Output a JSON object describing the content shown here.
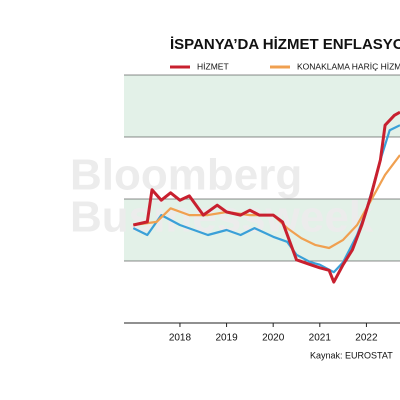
{
  "chart_data": {
    "type": "line",
    "title": "İSPANYA’DA HİZMET ENFLASYONU",
    "watermark": [
      "Bloomberg",
      "Businessweek"
    ],
    "source": "Kaynak: EUROSTAT",
    "xlim": [
      2016.8,
      2022.72
    ],
    "xticks": [
      2018,
      2019,
      2020,
      2021,
      2022
    ],
    "ylim": [
      0,
      4
    ],
    "series": [
      {
        "name": "HİZMET",
        "color": "#c8202f",
        "x": [
          2017.0,
          2017.3,
          2017.4,
          2017.6,
          2017.8,
          2018.0,
          2018.2,
          2018.5,
          2018.8,
          2019.0,
          2019.3,
          2019.5,
          2019.7,
          2020.0,
          2020.2,
          2020.5,
          2020.8,
          2021.0,
          2021.2,
          2021.3,
          2021.5,
          2021.7,
          2021.9,
          2022.1,
          2022.3,
          2022.4,
          2022.6,
          2022.72
        ],
        "values": [
          1.58,
          1.63,
          2.15,
          1.98,
          2.1,
          1.98,
          2.05,
          1.74,
          1.9,
          1.79,
          1.74,
          1.82,
          1.74,
          1.74,
          1.63,
          1.02,
          0.94,
          0.89,
          0.85,
          0.66,
          0.94,
          1.18,
          1.58,
          2.06,
          2.63,
          3.19,
          3.35,
          3.4
        ]
      },
      {
        "name": "KONAKLAMA HARİÇ HİZMET",
        "color": "#f0a050",
        "x": [
          2017.0,
          2017.5,
          2017.8,
          2018.2,
          2018.6,
          2019.0,
          2019.5,
          2020.0,
          2020.3,
          2020.6,
          2020.9,
          2021.2,
          2021.5,
          2021.8,
          2022.1,
          2022.4,
          2022.72
        ],
        "values": [
          1.58,
          1.63,
          1.85,
          1.74,
          1.74,
          1.79,
          1.74,
          1.74,
          1.53,
          1.37,
          1.26,
          1.21,
          1.34,
          1.58,
          1.98,
          2.39,
          2.71
        ]
      },
      {
        "color": "#3aa0d8",
        "x": [
          2017.0,
          2017.3,
          2017.6,
          2018.0,
          2018.3,
          2018.6,
          2019.0,
          2019.3,
          2019.6,
          2020.0,
          2020.3,
          2020.5,
          2020.8,
          2021.0,
          2021.3,
          2021.5,
          2021.8,
          2022.0,
          2022.3,
          2022.5,
          2022.72
        ],
        "values": [
          1.53,
          1.42,
          1.74,
          1.58,
          1.5,
          1.42,
          1.5,
          1.42,
          1.53,
          1.39,
          1.31,
          1.1,
          0.98,
          0.94,
          0.82,
          0.98,
          1.42,
          1.82,
          2.63,
          3.11,
          3.19
        ]
      }
    ]
  }
}
